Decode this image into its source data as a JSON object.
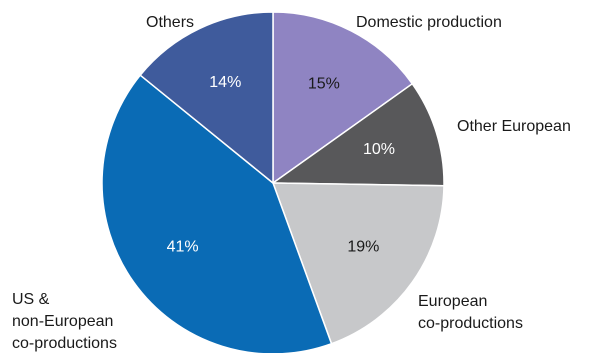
{
  "chart_data": {
    "type": "pie",
    "slices": [
      {
        "label": "Domestic production",
        "value": 15,
        "value_label": "15%",
        "color": "#8f84c2",
        "text_color": "#1a1a1a"
      },
      {
        "label": "Other European",
        "value": 10,
        "value_label": "10%",
        "color": "#58585a",
        "text_color": "#ffffff"
      },
      {
        "label": "European co-productions",
        "value": 19,
        "value_label": "19%",
        "color": "#c7c8ca",
        "text_color": "#1a1a1a"
      },
      {
        "label": "US & non-European co-productions",
        "value": 41,
        "value_label": "41%",
        "color": "#0a6bb5",
        "text_color": "#ffffff"
      },
      {
        "label": "Others",
        "value": 14,
        "value_label": "14%",
        "color": "#3f5b9c",
        "text_color": "#ffffff"
      }
    ],
    "start": "12 o'clock",
    "direction": "clockwise",
    "legend": "none (category labels placed next to slices)"
  },
  "labels": {
    "domestic": [
      "Domestic production"
    ],
    "other_european": [
      "Other European"
    ],
    "european_coprod": [
      "European",
      "co-productions"
    ],
    "us": [
      "US &",
      "non-European",
      "co-productions"
    ],
    "others": [
      "Others"
    ]
  }
}
